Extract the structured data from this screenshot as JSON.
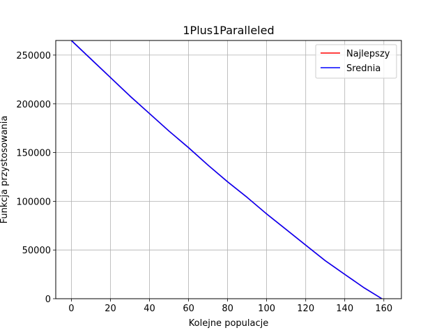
{
  "chart_data": {
    "type": "line",
    "title": "1Plus1Paralleled",
    "xlabel": "Kolejne populacje",
    "ylabel": "Funkcja przystosowania",
    "xlim": [
      -8,
      169
    ],
    "ylim": [
      0,
      265000
    ],
    "xticks": [
      0,
      20,
      40,
      60,
      80,
      100,
      120,
      140,
      160
    ],
    "yticks": [
      0,
      50000,
      100000,
      150000,
      200000,
      250000
    ],
    "grid": true,
    "legend_position": "upper right",
    "series": [
      {
        "name": "Najlepszy",
        "color": "#ff0000",
        "x": [
          0,
          10,
          20,
          30,
          40,
          50,
          60,
          70,
          80,
          90,
          100,
          110,
          120,
          130,
          140,
          150,
          159
        ],
        "y": [
          265000,
          246000,
          227000,
          208000,
          190000,
          172000,
          155000,
          137000,
          120000,
          104000,
          87000,
          71000,
          55000,
          39000,
          25000,
          11000,
          0
        ]
      },
      {
        "name": "Srednia",
        "color": "#0000ff",
        "x": [
          0,
          10,
          20,
          30,
          40,
          50,
          60,
          70,
          80,
          90,
          100,
          110,
          120,
          130,
          140,
          150,
          159
        ],
        "y": [
          265000,
          246000,
          227000,
          208000,
          190000,
          172000,
          155000,
          137000,
          120000,
          104000,
          87000,
          71000,
          55000,
          39000,
          25000,
          11000,
          0
        ]
      }
    ]
  }
}
